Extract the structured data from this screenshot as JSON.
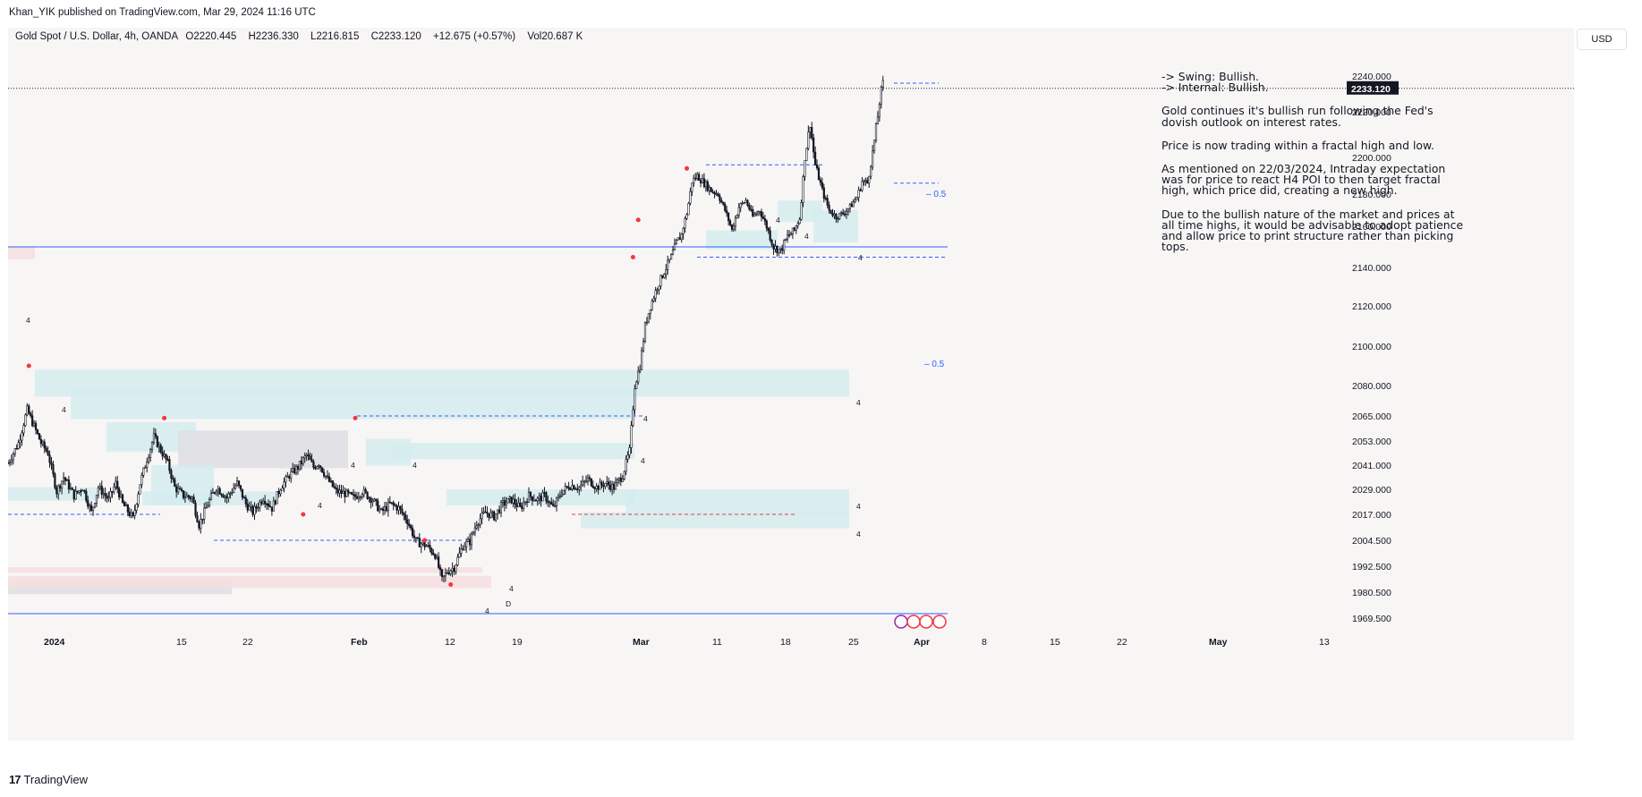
{
  "header": {
    "published_text": "Khan_YIK published on TradingView.com, Mar 29, 2024 11:16 UTC"
  },
  "legend": {
    "symbol": "Gold Spot / U.S. Dollar, 4h, OANDA",
    "open": "O2220.445",
    "high": "H2236.330",
    "low": "L2216.815",
    "close": "C2233.120",
    "change": "+12.675 (+0.57%)",
    "volume": "Vol20.687 K"
  },
  "currency_button": "USD",
  "notes": {
    "swing": "-> Swing:  Bullish.",
    "internal": "-> Internal:  Bullish.",
    "p1": "Gold continues it's bullish run following the Fed's dovish outlook on interest rates.",
    "p2": "Price is now trading within a fractal high and low.",
    "p3": "As mentioned on 22/03/2024, Intraday expectation was for price to react H4 POI to then target fractal high, which price did, creating a new high.",
    "p4": "Due to the bullish nature of the market and prices at all time highs, it would be advisable to adopt patience and allow price to print structure rather than picking tops."
  },
  "footer": {
    "brand": "TradingView"
  },
  "colors": {
    "candle": "#131722",
    "zone_blue": "#d5ecef",
    "zone_pink": "#f6dede",
    "zone_grey": "#dedee3",
    "dash_blue": "#2962ff",
    "dash_red": "#f23645",
    "line_blue": "#2962ff",
    "pivot_red": "#f23645",
    "price_tag_bg": "#131722"
  },
  "chart_data": {
    "type": "candlestick",
    "symbol": "XAUUSD",
    "timeframe": "4h",
    "current_price": "2233.120",
    "y_ticks": [
      "2240.000",
      "2220.000",
      "2200.000",
      "2180.000",
      "2160.000",
      "2140.000",
      "2120.000",
      "2100.000",
      "2080.000",
      "2065.000",
      "2053.000",
      "2041.000",
      "2029.000",
      "2017.000",
      "2004.500",
      "1992.500",
      "1980.500",
      "1969.500"
    ],
    "x_ticks": [
      "2024",
      "15",
      "22",
      "Feb",
      "12",
      "19",
      "Mar",
      "11",
      "18",
      "25",
      "Apr",
      "8",
      "15",
      "22",
      "May",
      "13"
    ],
    "fib_labels": [
      "0.5",
      "0.5"
    ],
    "zone_labels": [
      "4",
      "4",
      "4",
      "4",
      "4",
      "4",
      "4",
      "4",
      "4",
      "4",
      "4",
      "4",
      "4",
      "4",
      "4",
      "D"
    ],
    "path": [
      [
        0,
        2042
      ],
      [
        6,
        2052
      ],
      [
        11,
        2068
      ],
      [
        14,
        2062
      ],
      [
        19,
        2052
      ],
      [
        23,
        2047
      ],
      [
        28,
        2028
      ],
      [
        32,
        2035
      ],
      [
        38,
        2026
      ],
      [
        43,
        2030
      ],
      [
        48,
        2018
      ],
      [
        52,
        2030
      ],
      [
        58,
        2024
      ],
      [
        62,
        2032
      ],
      [
        66,
        2022
      ],
      [
        72,
        2015
      ],
      [
        76,
        2032
      ],
      [
        80,
        2044
      ],
      [
        84,
        2055
      ],
      [
        87,
        2050
      ],
      [
        92,
        2042
      ],
      [
        96,
        2030
      ],
      [
        101,
        2026
      ],
      [
        106,
        2025
      ],
      [
        110,
        2012
      ],
      [
        115,
        2022
      ],
      [
        120,
        2030
      ],
      [
        126,
        2025
      ],
      [
        132,
        2032
      ],
      [
        137,
        2022
      ],
      [
        141,
        2018
      ],
      [
        147,
        2025
      ],
      [
        152,
        2020
      ],
      [
        157,
        2030
      ],
      [
        162,
        2036
      ],
      [
        167,
        2040
      ],
      [
        172,
        2046
      ],
      [
        176,
        2040
      ],
      [
        179,
        2042
      ],
      [
        184,
        2034
      ],
      [
        189,
        2028
      ],
      [
        194,
        2027
      ],
      [
        199,
        2025
      ],
      [
        204,
        2028
      ],
      [
        210,
        2024
      ],
      [
        215,
        2018
      ],
      [
        220,
        2022
      ],
      [
        225,
        2020
      ],
      [
        230,
        2014
      ],
      [
        235,
        2004
      ],
      [
        241,
        2002
      ],
      [
        246,
        1998
      ],
      [
        250,
        1986
      ],
      [
        253,
        1990
      ],
      [
        257,
        1992
      ],
      [
        262,
        2002
      ],
      [
        266,
        2004
      ],
      [
        270,
        2013
      ],
      [
        275,
        2018
      ],
      [
        280,
        2016
      ],
      [
        285,
        2022
      ],
      [
        290,
        2024
      ],
      [
        295,
        2020
      ],
      [
        300,
        2026
      ],
      [
        305,
        2024
      ],
      [
        309,
        2026
      ],
      [
        314,
        2020
      ],
      [
        319,
        2028
      ],
      [
        324,
        2031
      ],
      [
        329,
        2030
      ],
      [
        334,
        2034
      ],
      [
        339,
        2030
      ],
      [
        344,
        2032
      ],
      [
        349,
        2030
      ],
      [
        354,
        2036
      ],
      [
        358,
        2048
      ],
      [
        361,
        2080
      ],
      [
        364,
        2090
      ],
      [
        367,
        2110
      ],
      [
        370,
        2120
      ],
      [
        374,
        2130
      ],
      [
        378,
        2138
      ],
      [
        382,
        2145
      ],
      [
        385,
        2152
      ],
      [
        388,
        2156
      ],
      [
        391,
        2168
      ],
      [
        394,
        2187
      ],
      [
        397,
        2190
      ],
      [
        401,
        2186
      ],
      [
        405,
        2182
      ],
      [
        409,
        2180
      ],
      [
        413,
        2170
      ],
      [
        417,
        2158
      ],
      [
        421,
        2172
      ],
      [
        425,
        2176
      ],
      [
        429,
        2166
      ],
      [
        433,
        2170
      ],
      [
        437,
        2160
      ],
      [
        441,
        2150
      ],
      [
        445,
        2148
      ],
      [
        449,
        2155
      ],
      [
        453,
        2158
      ],
      [
        456,
        2165
      ],
      [
        459,
        2200
      ],
      [
        462,
        2215
      ],
      [
        465,
        2196
      ],
      [
        469,
        2182
      ],
      [
        473,
        2170
      ],
      [
        477,
        2166
      ],
      [
        481,
        2168
      ],
      [
        485,
        2172
      ],
      [
        489,
        2178
      ],
      [
        492,
        2187
      ],
      [
        495,
        2186
      ],
      [
        498,
        2202
      ],
      [
        501,
        2218
      ],
      [
        503,
        2232
      ],
      [
        504,
        2236
      ],
      [
        505,
        2233
      ]
    ]
  }
}
